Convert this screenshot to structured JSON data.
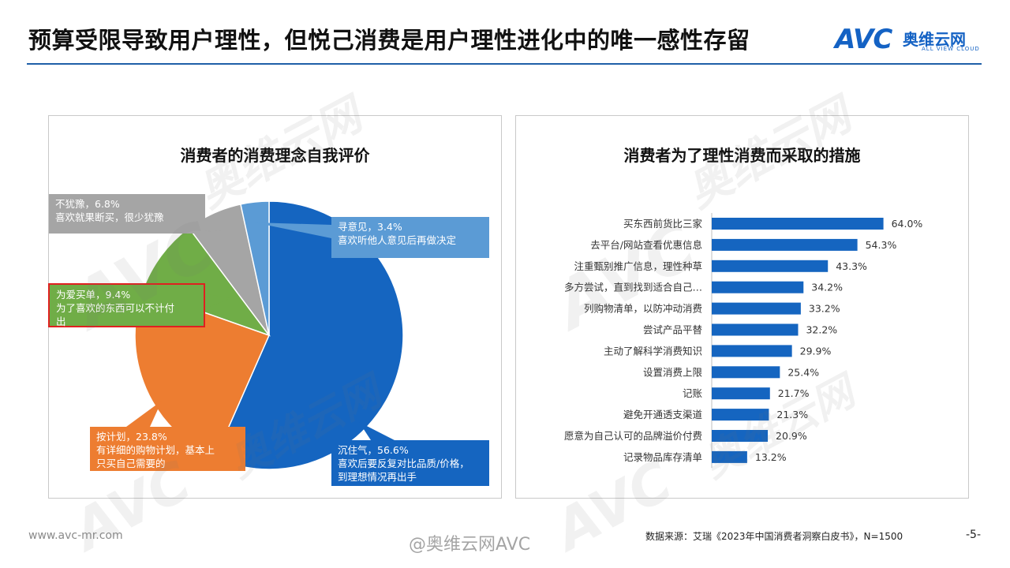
{
  "header": {
    "title": "预算受限导致用户理性，但悦己消费是用户理性进化中的唯一感性存留",
    "logo_main": "AVC",
    "logo_cn": "奥维云网",
    "logo_en": "ALL VIEW CLOUD"
  },
  "left_panel": {
    "title": "消费者的消费理念自我评价"
  },
  "right_panel": {
    "title": "消费者为了理性消费而采取的措施"
  },
  "callouts": {
    "wait": {
      "line1": "沉住气，56.6%",
      "line2": "喜欢后要反复对比品质/价格，",
      "line3": "到理想情况再出手"
    },
    "plan": {
      "line1": "按计划，23.8%",
      "line2": "有详细的购物计划，基本上",
      "line3": "只买自己需要的"
    },
    "love": {
      "line1": "为爱买单，9.4%",
      "line2": "为了喜欢的东西可以不计付",
      "line3": "出"
    },
    "decisive": {
      "line1": "不犹豫，6.8%",
      "line2": "喜欢就果断买，很少犹豫"
    },
    "advice": {
      "line1": "寻意见，3.4%",
      "line2": "喜欢听他人意见后再做决定"
    }
  },
  "chart_data": [
    {
      "type": "pie",
      "title": "消费者的消费理念自我评价",
      "categories": [
        "沉住气",
        "按计划",
        "为爱买单",
        "不犹豫",
        "寻意见"
      ],
      "values": [
        56.6,
        23.8,
        9.4,
        6.8,
        3.4
      ],
      "unit": "%",
      "colors": [
        "#1565c0",
        "#ed7d31",
        "#70ad47",
        "#a5a5a5",
        "#5b9bd5"
      ]
    },
    {
      "type": "bar",
      "orientation": "horizontal",
      "title": "消费者为了理性消费而采取的措施",
      "categories": [
        "买东西前货比三家",
        "去平台/网站查看优惠信息",
        "注重甄别推广信息，理性种草",
        "多方尝试，直到找到适合自己…",
        "列购物清单，以防冲动消费",
        "尝试产品平替",
        "主动了解科学消费知识",
        "设置消费上限",
        "记账",
        "避免开通透支渠道",
        "愿意为自己认可的品牌溢价付费",
        "记录物品库存清单"
      ],
      "values": [
        64.0,
        54.3,
        43.3,
        34.2,
        33.2,
        32.2,
        29.9,
        25.4,
        21.7,
        21.3,
        20.9,
        13.2
      ],
      "value_labels": [
        "64.0%",
        "54.3%",
        "43.3%",
        "34.2%",
        "33.2%",
        "32.2%",
        "29.9%",
        "25.4%",
        "21.7%",
        "21.3%",
        "20.9%",
        "13.2%"
      ],
      "unit": "%",
      "xlim": [
        0,
        100
      ],
      "color": "#1565c0"
    }
  ],
  "footer": {
    "site": "www.avc-mr.com",
    "weibo": "@奥维云网AVC",
    "source": "数据来源：艾瑞《2023年中国消费者洞察白皮书》，N=1500",
    "page": "-5-"
  }
}
